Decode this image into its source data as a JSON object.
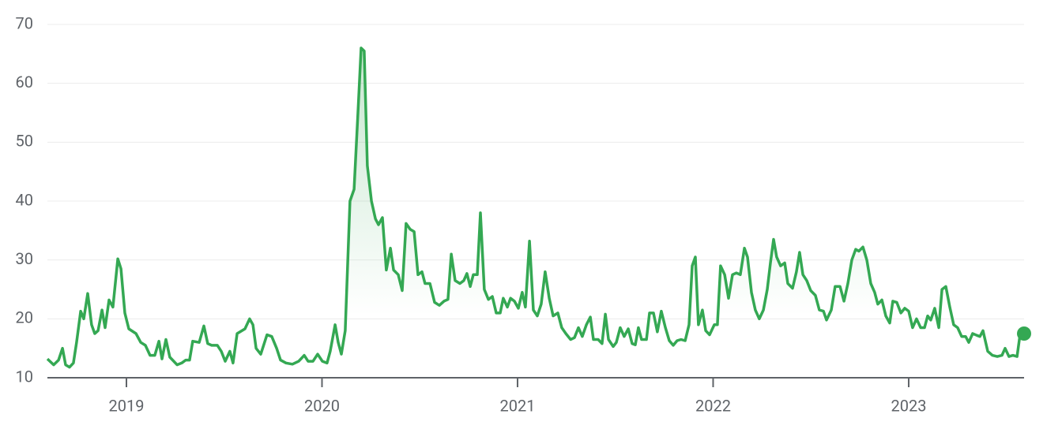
{
  "chart_data": {
    "type": "line",
    "color": "#34a853",
    "x": [
      2018.596,
      2018.628,
      2018.653,
      2018.673,
      2018.689,
      2018.709,
      2018.729,
      2018.745,
      2018.766,
      2018.782,
      2018.802,
      2018.822,
      2018.838,
      2018.855,
      2018.875,
      2018.891,
      2018.911,
      2018.931,
      2018.956,
      2018.972,
      2018.992,
      2019.012,
      2019.049,
      2019.073,
      2019.097,
      2019.121,
      2019.145,
      2019.166,
      2019.182,
      2019.202,
      2019.222,
      2019.242,
      2019.259,
      2019.283,
      2019.303,
      2019.323,
      2019.339,
      2019.372,
      2019.396,
      2019.416,
      2019.436,
      2019.465,
      2019.485,
      2019.505,
      2019.529,
      2019.545,
      2019.566,
      2019.606,
      2019.63,
      2019.647,
      2019.663,
      2019.687,
      2019.719,
      2019.743,
      2019.768,
      2019.788,
      2019.816,
      2019.849,
      2019.881,
      2019.909,
      2019.929,
      2019.954,
      2019.978,
      2020.002,
      2020.026,
      2020.042,
      2020.067,
      2020.083,
      2020.099,
      2020.119,
      2020.143,
      2020.164,
      2020.184,
      2020.2,
      2020.216,
      2020.232,
      2020.253,
      2020.273,
      2020.289,
      2020.309,
      2020.329,
      2020.35,
      2020.366,
      2020.39,
      2020.41,
      2020.43,
      2020.451,
      2020.471,
      2020.491,
      2020.511,
      2020.527,
      2020.552,
      2020.576,
      2020.6,
      2020.624,
      2020.644,
      2020.661,
      2020.681,
      2020.705,
      2020.725,
      2020.741,
      2020.758,
      2020.774,
      2020.794,
      2020.81,
      2020.83,
      2020.851,
      2020.871,
      2020.891,
      2020.911,
      2020.927,
      2020.948,
      2020.964,
      2020.984,
      2021.004,
      2021.024,
      2021.04,
      2021.061,
      2021.081,
      2021.101,
      2021.121,
      2021.141,
      2021.162,
      2021.182,
      2021.206,
      2021.226,
      2021.247,
      2021.271,
      2021.291,
      2021.311,
      2021.331,
      2021.352,
      2021.372,
      2021.388,
      2021.412,
      2021.432,
      2021.449,
      2021.465,
      2021.489,
      2021.505,
      2021.525,
      2021.545,
      2021.566,
      2021.586,
      2021.602,
      2021.618,
      2021.634,
      2021.659,
      2021.675,
      2021.695,
      2021.715,
      2021.735,
      2021.756,
      2021.776,
      2021.796,
      2021.816,
      2021.836,
      2021.857,
      2021.877,
      2021.893,
      2021.909,
      2021.925,
      2021.945,
      2021.962,
      2021.982,
      2022.006,
      2022.022,
      2022.038,
      2022.059,
      2022.079,
      2022.099,
      2022.119,
      2022.139,
      2022.16,
      2022.176,
      2022.196,
      2022.216,
      2022.236,
      2022.257,
      2022.277,
      2022.293,
      2022.309,
      2022.325,
      2022.345,
      2022.366,
      2022.382,
      2022.406,
      2022.426,
      2022.442,
      2022.459,
      2022.479,
      2022.499,
      2022.523,
      2022.543,
      2022.564,
      2022.58,
      2022.604,
      2022.624,
      2022.649,
      2022.669,
      2022.689,
      2022.709,
      2022.729,
      2022.745,
      2022.766,
      2022.786,
      2022.806,
      2022.826,
      2022.842,
      2022.863,
      2022.883,
      2022.903,
      2022.919,
      2022.939,
      2022.96,
      2022.98,
      2023.0,
      2023.02,
      2023.04,
      2023.061,
      2023.081,
      2023.097,
      2023.113,
      2023.133,
      2023.154,
      2023.17,
      2023.19,
      2023.21,
      2023.23,
      2023.25,
      2023.271,
      2023.291,
      2023.307,
      2023.327,
      2023.348,
      2023.364,
      2023.38,
      2023.404,
      2023.428,
      2023.453,
      2023.477,
      2023.493,
      2023.513,
      2023.533,
      2023.554,
      2023.57,
      2023.59
    ],
    "values": [
      13.2,
      12.2,
      13,
      15,
      12.2,
      11.8,
      12.5,
      16,
      21.3,
      20,
      24.3,
      19,
      17.5,
      18,
      21.5,
      18.5,
      23.2,
      22,
      30.2,
      28.5,
      21,
      18.3,
      17.5,
      16,
      15.5,
      13.8,
      13.8,
      16.2,
      13.2,
      16.5,
      13.5,
      12.8,
      12.2,
      12.5,
      13,
      13,
      16.2,
      16,
      18.8,
      15.8,
      15.5,
      15.5,
      14.5,
      12.8,
      14.5,
      12.5,
      17.5,
      18.3,
      20,
      19,
      15,
      14,
      17.3,
      17,
      15,
      13,
      12.5,
      12.3,
      12.8,
      13.8,
      12.8,
      12.8,
      14,
      12.8,
      12.5,
      14.5,
      19,
      16,
      14,
      18,
      40,
      42,
      55,
      66,
      65.5,
      46,
      40,
      37,
      36,
      37.2,
      28.3,
      32,
      28.3,
      27.5,
      24.8,
      36.2,
      35.2,
      34.8,
      27.5,
      28,
      26,
      26,
      22.8,
      22.3,
      23,
      23.3,
      31,
      26.5,
      26,
      26.5,
      27.7,
      25.5,
      27.5,
      27.5,
      38,
      25,
      23.3,
      23.8,
      21,
      21,
      23.5,
      22,
      23.5,
      23,
      21.8,
      24.5,
      22,
      33.2,
      21.5,
      20.5,
      22.5,
      28,
      23.5,
      20.5,
      21,
      18.5,
      17.5,
      16.5,
      16.8,
      18.5,
      17,
      19,
      20.3,
      16.5,
      16.5,
      15.8,
      20.8,
      16.5,
      15.3,
      16,
      18.5,
      17,
      18.3,
      15.8,
      15.6,
      18.5,
      16.5,
      16.5,
      21,
      21,
      17.8,
      21.3,
      18.5,
      16.3,
      15.5,
      16.3,
      16.5,
      16.3,
      19,
      29,
      30.5,
      19,
      21.5,
      18,
      17.3,
      19,
      19,
      29,
      27.5,
      23.5,
      27.5,
      27.8,
      27.5,
      32,
      30.5,
      24.5,
      21.5,
      20,
      21.5,
      25,
      29.5,
      33.5,
      30.5,
      29,
      29.5,
      26,
      25.2,
      28,
      31.3,
      27.5,
      26.5,
      24.8,
      24,
      21.5,
      21.3,
      19.8,
      21.5,
      25.5,
      25.5,
      23,
      26,
      30,
      31.8,
      31.5,
      32.2,
      30,
      26,
      24.5,
      22.5,
      23.2,
      20.5,
      19.3,
      23,
      22.8,
      21,
      21.8,
      21.3,
      18.5,
      20,
      18.5,
      18.5,
      20.5,
      19.8,
      21.8,
      18.5,
      25,
      25.5,
      22,
      19,
      18.5,
      17,
      17,
      16,
      17.5,
      17.2,
      17,
      18,
      14.5,
      13.8,
      13.6,
      13.8,
      15,
      13.6,
      13.8,
      13.6,
      17.5,
      17.5
    ],
    "xlim": [
      2018.596,
      2023.59
    ],
    "xticks": [
      2019,
      2020,
      2021,
      2022,
      2023
    ],
    "ylim": [
      10,
      70
    ],
    "yticks": [
      10,
      20,
      30,
      40,
      50,
      60,
      70
    ],
    "grid": true
  }
}
